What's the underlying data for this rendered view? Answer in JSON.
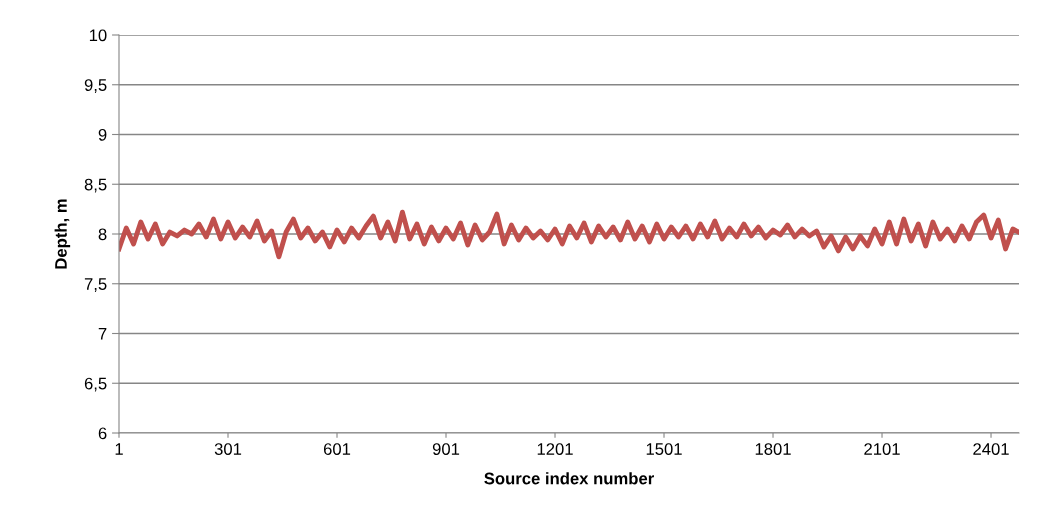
{
  "chart_data": {
    "type": "line",
    "xlabel": "Source index number",
    "ylabel": "Depth, m",
    "x": [
      1,
      21,
      41,
      61,
      81,
      101,
      121,
      141,
      161,
      181,
      201,
      221,
      241,
      261,
      281,
      301,
      321,
      341,
      361,
      381,
      401,
      421,
      441,
      461,
      481,
      501,
      521,
      541,
      561,
      581,
      601,
      621,
      641,
      661,
      681,
      701,
      721,
      741,
      761,
      781,
      801,
      821,
      841,
      861,
      881,
      901,
      921,
      941,
      961,
      981,
      1001,
      1021,
      1041,
      1061,
      1081,
      1101,
      1121,
      1141,
      1161,
      1181,
      1201,
      1221,
      1241,
      1261,
      1281,
      1301,
      1321,
      1341,
      1361,
      1381,
      1401,
      1421,
      1441,
      1461,
      1481,
      1501,
      1521,
      1541,
      1561,
      1581,
      1601,
      1621,
      1641,
      1661,
      1681,
      1701,
      1721,
      1741,
      1761,
      1781,
      1801,
      1821,
      1841,
      1861,
      1881,
      1901,
      1921,
      1941,
      1961,
      1981,
      2001,
      2021,
      2041,
      2061,
      2081,
      2101,
      2121,
      2141,
      2161,
      2181,
      2201,
      2221,
      2241,
      2261,
      2281,
      2301,
      2321,
      2341,
      2361,
      2381,
      2401,
      2421,
      2441,
      2461,
      2477
    ],
    "series": [
      {
        "color": "#c0504d",
        "values": [
          7.85,
          8.06,
          7.9,
          8.12,
          7.95,
          8.1,
          7.9,
          8.02,
          7.98,
          8.04,
          8.0,
          8.1,
          7.97,
          8.15,
          7.95,
          8.12,
          7.96,
          8.07,
          7.97,
          8.13,
          7.93,
          8.03,
          7.77,
          8.02,
          8.15,
          7.96,
          8.06,
          7.93,
          8.02,
          7.87,
          8.04,
          7.92,
          8.06,
          7.96,
          8.08,
          8.18,
          7.96,
          8.12,
          7.93,
          8.22,
          7.95,
          8.1,
          7.9,
          8.07,
          7.93,
          8.06,
          7.95,
          8.11,
          7.89,
          8.09,
          7.94,
          8.02,
          8.2,
          7.9,
          8.09,
          7.94,
          8.06,
          7.96,
          8.03,
          7.94,
          8.05,
          7.9,
          8.08,
          7.96,
          8.11,
          7.92,
          8.08,
          7.97,
          8.07,
          7.94,
          8.12,
          7.95,
          8.08,
          7.92,
          8.1,
          7.95,
          8.07,
          7.97,
          8.08,
          7.95,
          8.1,
          7.97,
          8.13,
          7.95,
          8.06,
          7.97,
          8.1,
          7.98,
          8.07,
          7.96,
          8.04,
          7.99,
          8.09,
          7.97,
          8.05,
          7.98,
          8.03,
          7.87,
          7.98,
          7.83,
          7.97,
          7.85,
          7.98,
          7.88,
          8.05,
          7.9,
          8.12,
          7.9,
          8.15,
          7.93,
          8.1,
          7.88,
          8.12,
          7.95,
          8.05,
          7.93,
          8.08,
          7.95,
          8.12,
          8.19,
          7.96,
          8.14,
          7.85,
          8.05,
          8.02
        ]
      }
    ],
    "xlim": [
      1,
      2478
    ],
    "xticks": [
      1,
      301,
      601,
      901,
      1201,
      1501,
      1801,
      2101,
      2401
    ],
    "ylim": [
      6,
      10
    ],
    "yticks": [
      6,
      {
        "value": 6.5,
        "label": "6,5"
      },
      7,
      {
        "value": 7.5,
        "label": "7,5"
      },
      8,
      {
        "value": 8.5,
        "label": "8,5"
      },
      9,
      {
        "value": 9.5,
        "label": "9,5"
      },
      10
    ],
    "grid": "y",
    "marker": "none",
    "line_style": "solid"
  }
}
